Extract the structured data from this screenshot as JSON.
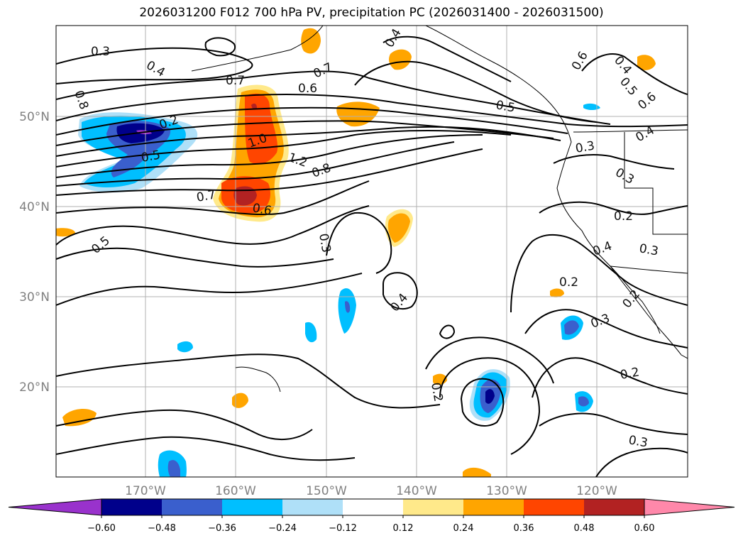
{
  "title": "2026031200 F012 700 hPa PV, precipitation PC (2026031400 - 2026031500)",
  "map": {
    "lat_labels": [
      "50°N",
      "40°N",
      "30°N",
      "20°N"
    ],
    "lon_labels": [
      "170°W",
      "160°W",
      "150°W",
      "140°W",
      "130°W",
      "120°W"
    ],
    "gridlines": "on"
  },
  "colorbar": {
    "ticks": [
      "−0.60",
      "−0.48",
      "−0.36",
      "−0.24",
      "−0.12",
      "0.12",
      "0.24",
      "0.36",
      "0.48",
      "0.60"
    ],
    "colors": [
      "#9932cc",
      "#00008b",
      "#3a5fcd",
      "#00bfff",
      "#afe0f8",
      "#ffffff",
      "#ffe98a",
      "#ffa500",
      "#ff4500",
      "#b22222",
      "#ff88aa"
    ],
    "extend": "both"
  },
  "contour_labels": [
    "0.3",
    "0.4",
    "0.8",
    "0.7",
    "0.6",
    "0.7",
    "0.4",
    "0.6",
    "0.4",
    "0.5",
    "0.6",
    "0.2",
    "0.5",
    "1.0",
    "1.2",
    "0.8",
    "0.5",
    "0.3",
    "0.4",
    "0.7",
    "0.6",
    "0.2",
    "0.5",
    "0.3",
    "0.3",
    "0.4",
    "0.2",
    "0.3",
    "0.4",
    "0.2",
    "0.3",
    "0.2",
    "0.2",
    "0.3"
  ],
  "colors": {
    "contour": "#000000",
    "coast": "#000000",
    "grid": "#b0b0b0"
  }
}
